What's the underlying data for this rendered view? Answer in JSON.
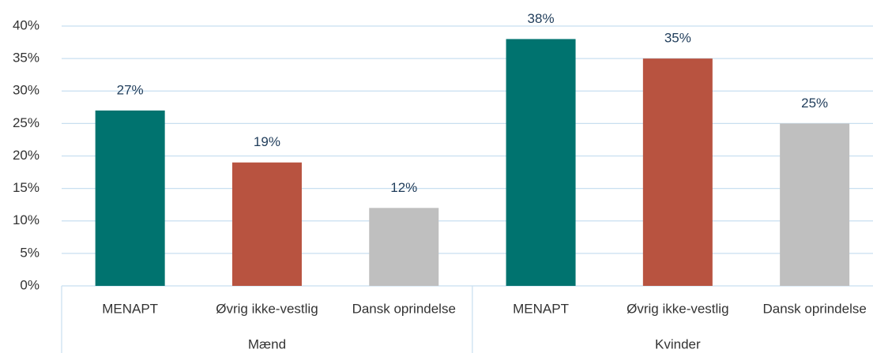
{
  "chart_data": {
    "type": "bar",
    "categories": [
      "MENAPT",
      "Øvrig ikke-vestlig",
      "Dansk oprindelse",
      "MENAPT",
      "Øvrig ikke-vestlig",
      "Dansk oprindelse"
    ],
    "groups": [
      "Mænd",
      "Kvinder"
    ],
    "values": [
      27,
      19,
      12,
      38,
      35,
      25
    ],
    "value_labels": [
      "27%",
      "19%",
      "12%",
      "38%",
      "35%",
      "25%"
    ],
    "colors": [
      "#00736f",
      "#b85340",
      "#bfbfbf",
      "#00736f",
      "#b85340",
      "#bfbfbf"
    ],
    "ylim": [
      0,
      40
    ],
    "yticks": [
      {
        "value": 0,
        "label": "0%"
      },
      {
        "value": 5,
        "label": "5%"
      },
      {
        "value": 10,
        "label": "10%"
      },
      {
        "value": 15,
        "label": "15%"
      },
      {
        "value": 20,
        "label": "20%"
      },
      {
        "value": 25,
        "label": "25%"
      },
      {
        "value": 30,
        "label": "30%"
      },
      {
        "value": 35,
        "label": "35%"
      },
      {
        "value": 40,
        "label": "40%"
      }
    ],
    "grid": true
  }
}
